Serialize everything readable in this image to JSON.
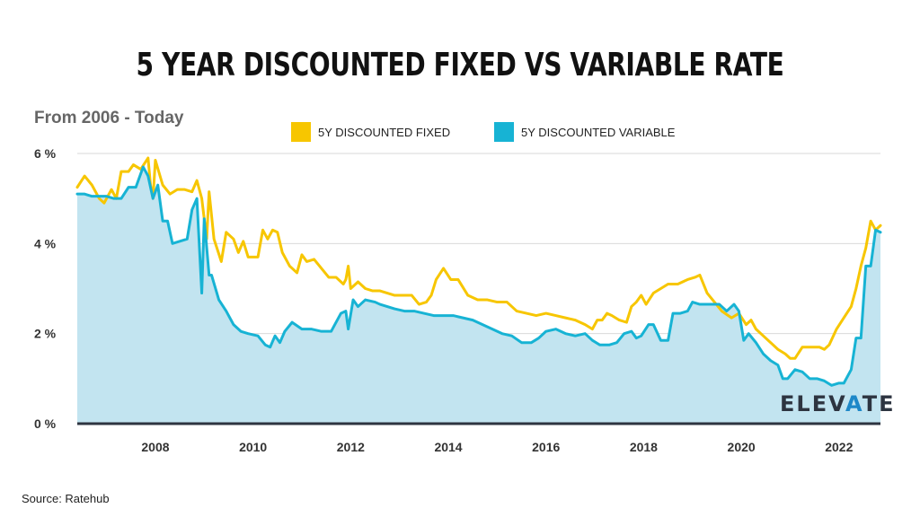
{
  "title": "5 YEAR DISCOUNTED FIXED VS VARIABLE RATE",
  "subtitle": "From 2006 - Today",
  "source": "Source: Ratehub",
  "logo": {
    "text_before": "ELEV",
    "accent": "A",
    "text_after": "TE"
  },
  "colors": {
    "fixed": "#f7c600",
    "variable": "#17b3d4",
    "fill": "#c2e4f0",
    "grid": "#d9d9d9",
    "baseline": "#2d3440"
  },
  "chart_data": {
    "type": "line",
    "title": "5 YEAR DISCOUNTED FIXED VS VARIABLE RATE",
    "subtitle": "From 2006 - Today",
    "xlabel": "",
    "ylabel": "",
    "xlim": [
      2006.4,
      2022.85
    ],
    "ylim": [
      0,
      6
    ],
    "grid": true,
    "legend_position": "top",
    "x_ticks": [
      2008,
      2010,
      2012,
      2014,
      2016,
      2018,
      2020,
      2022
    ],
    "x_tick_labels": [
      "2008",
      "2010",
      "2012",
      "2014",
      "2016",
      "2018",
      "2020",
      "2022"
    ],
    "y_ticks": [
      0,
      2,
      4,
      6
    ],
    "y_tick_labels": [
      "0 %",
      "2 %",
      "4 %",
      "6 %"
    ],
    "series": [
      {
        "name": "5Y DISCOUNTED FIXED",
        "color": "#f7c600",
        "x": [
          2006.4,
          2006.55,
          2006.7,
          2006.85,
          2006.95,
          2007.1,
          2007.2,
          2007.3,
          2007.45,
          2007.55,
          2007.7,
          2007.85,
          2007.9,
          2007.95,
          2008.0,
          2008.15,
          2008.3,
          2008.45,
          2008.6,
          2008.75,
          2008.85,
          2008.95,
          2009.05,
          2009.1,
          2009.2,
          2009.35,
          2009.45,
          2009.6,
          2009.7,
          2009.8,
          2009.9,
          2010.1,
          2010.2,
          2010.3,
          2010.4,
          2010.5,
          2010.6,
          2010.75,
          2010.9,
          2011.0,
          2011.1,
          2011.25,
          2011.4,
          2011.55,
          2011.7,
          2011.85,
          2011.9,
          2011.95,
          2012.0,
          2012.15,
          2012.3,
          2012.45,
          2012.6,
          2012.75,
          2012.9,
          2013.1,
          2013.25,
          2013.4,
          2013.55,
          2013.65,
          2013.75,
          2013.9,
          2014.05,
          2014.2,
          2014.4,
          2014.6,
          2014.8,
          2015.0,
          2015.2,
          2015.4,
          2015.6,
          2015.8,
          2016.0,
          2016.2,
          2016.4,
          2016.6,
          2016.8,
          2016.95,
          2017.05,
          2017.15,
          2017.25,
          2017.35,
          2017.5,
          2017.65,
          2017.75,
          2017.85,
          2017.95,
          2018.05,
          2018.2,
          2018.35,
          2018.5,
          2018.7,
          2018.9,
          2019.05,
          2019.15,
          2019.3,
          2019.45,
          2019.6,
          2019.8,
          2019.95,
          2020.1,
          2020.2,
          2020.3,
          2020.45,
          2020.6,
          2020.75,
          2020.9,
          2021.0,
          2021.1,
          2021.25,
          2021.45,
          2021.6,
          2021.7,
          2021.8,
          2021.95,
          2022.1,
          2022.25,
          2022.35,
          2022.45,
          2022.55,
          2022.65,
          2022.75,
          2022.85
        ],
        "values": [
          5.25,
          5.5,
          5.3,
          5.0,
          4.9,
          5.2,
          5.0,
          5.6,
          5.6,
          5.75,
          5.65,
          5.9,
          5.3,
          5.0,
          5.85,
          5.3,
          5.1,
          5.2,
          5.2,
          5.15,
          5.4,
          5.0,
          4.1,
          5.15,
          4.1,
          3.6,
          4.25,
          4.1,
          3.8,
          4.05,
          3.7,
          3.7,
          4.3,
          4.1,
          4.3,
          4.25,
          3.8,
          3.5,
          3.35,
          3.75,
          3.6,
          3.65,
          3.45,
          3.25,
          3.25,
          3.1,
          3.2,
          3.5,
          3.0,
          3.15,
          3.0,
          2.95,
          2.95,
          2.9,
          2.85,
          2.85,
          2.85,
          2.65,
          2.7,
          2.85,
          3.2,
          3.45,
          3.2,
          3.2,
          2.85,
          2.75,
          2.75,
          2.7,
          2.7,
          2.5,
          2.45,
          2.4,
          2.45,
          2.4,
          2.35,
          2.3,
          2.2,
          2.1,
          2.3,
          2.3,
          2.45,
          2.4,
          2.3,
          2.25,
          2.6,
          2.7,
          2.85,
          2.65,
          2.9,
          3.0,
          3.1,
          3.1,
          3.2,
          3.25,
          3.3,
          2.9,
          2.7,
          2.5,
          2.35,
          2.45,
          2.2,
          2.3,
          2.1,
          1.95,
          1.8,
          1.65,
          1.55,
          1.45,
          1.45,
          1.7,
          1.7,
          1.7,
          1.65,
          1.75,
          2.1,
          2.35,
          2.6,
          3.0,
          3.5,
          3.9,
          4.5,
          4.3,
          4.4
        ]
      },
      {
        "name": "5Y DISCOUNTED VARIABLE",
        "color": "#17b3d4",
        "x": [
          2006.4,
          2006.55,
          2006.7,
          2006.85,
          2007.0,
          2007.15,
          2007.3,
          2007.45,
          2007.6,
          2007.75,
          2007.85,
          2007.95,
          2008.05,
          2008.15,
          2008.25,
          2008.35,
          2008.5,
          2008.65,
          2008.75,
          2008.85,
          2008.95,
          2009.0,
          2009.1,
          2009.15,
          2009.3,
          2009.45,
          2009.6,
          2009.75,
          2009.9,
          2010.1,
          2010.25,
          2010.35,
          2010.45,
          2010.55,
          2010.65,
          2010.8,
          2011.0,
          2011.2,
          2011.4,
          2011.6,
          2011.8,
          2011.9,
          2011.95,
          2012.05,
          2012.15,
          2012.3,
          2012.5,
          2012.6,
          2012.75,
          2012.9,
          2013.1,
          2013.3,
          2013.5,
          2013.7,
          2013.9,
          2014.1,
          2014.3,
          2014.5,
          2014.7,
          2014.9,
          2015.1,
          2015.3,
          2015.5,
          2015.7,
          2015.85,
          2016.0,
          2016.2,
          2016.4,
          2016.6,
          2016.8,
          2016.95,
          2017.1,
          2017.3,
          2017.45,
          2017.6,
          2017.75,
          2017.85,
          2017.95,
          2018.1,
          2018.2,
          2018.35,
          2018.5,
          2018.6,
          2018.75,
          2018.9,
          2019.0,
          2019.15,
          2019.35,
          2019.55,
          2019.7,
          2019.85,
          2019.95,
          2020.05,
          2020.15,
          2020.3,
          2020.45,
          2020.6,
          2020.75,
          2020.85,
          2020.95,
          2021.1,
          2021.25,
          2021.4,
          2021.55,
          2021.7,
          2021.85,
          2022.0,
          2022.1,
          2022.25,
          2022.35,
          2022.45,
          2022.55,
          2022.65,
          2022.75,
          2022.85
        ],
        "values": [
          5.1,
          5.1,
          5.05,
          5.05,
          5.05,
          5.0,
          5.0,
          5.25,
          5.25,
          5.7,
          5.5,
          5.0,
          5.3,
          4.5,
          4.5,
          4.0,
          4.05,
          4.1,
          4.75,
          5.0,
          2.9,
          4.55,
          3.3,
          3.3,
          2.75,
          2.5,
          2.2,
          2.05,
          2.0,
          1.95,
          1.75,
          1.7,
          1.95,
          1.8,
          2.05,
          2.25,
          2.1,
          2.1,
          2.05,
          2.05,
          2.45,
          2.5,
          2.1,
          2.75,
          2.6,
          2.75,
          2.7,
          2.65,
          2.6,
          2.55,
          2.5,
          2.5,
          2.45,
          2.4,
          2.4,
          2.4,
          2.35,
          2.3,
          2.2,
          2.1,
          2.0,
          1.95,
          1.8,
          1.8,
          1.9,
          2.05,
          2.1,
          2.0,
          1.95,
          2.0,
          1.85,
          1.75,
          1.75,
          1.8,
          2.0,
          2.05,
          1.9,
          1.95,
          2.2,
          2.2,
          1.85,
          1.85,
          2.45,
          2.45,
          2.5,
          2.7,
          2.65,
          2.65,
          2.65,
          2.5,
          2.65,
          2.5,
          1.85,
          2.0,
          1.8,
          1.55,
          1.4,
          1.3,
          1.0,
          1.0,
          1.2,
          1.15,
          1.0,
          1.0,
          0.95,
          0.85,
          0.9,
          0.9,
          1.2,
          1.9,
          1.9,
          3.5,
          3.5,
          4.3,
          4.25
        ]
      }
    ]
  }
}
